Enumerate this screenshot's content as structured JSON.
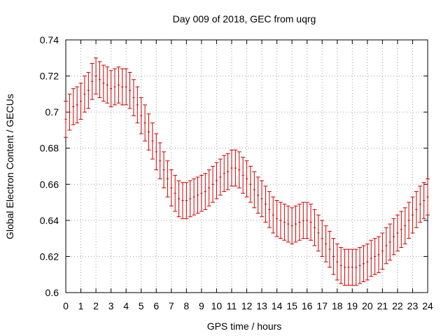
{
  "chart_data": {
    "type": "line",
    "title": "Day 009 of 2018, GEC from uqrg",
    "xlabel": "GPS time / hours",
    "ylabel": "Global Electron Content / GECUs",
    "xlim": [
      0,
      24
    ],
    "ylim": [
      0.6,
      0.74
    ],
    "x_ticks": [
      "0",
      "1",
      "2",
      "3",
      "4",
      "5",
      "6",
      "7",
      "8",
      "9",
      "10",
      "11",
      "12",
      "13",
      "14",
      "15",
      "16",
      "17",
      "18",
      "19",
      "20",
      "21",
      "22",
      "23",
      "24"
    ],
    "y_ticks": [
      "0.6",
      "0.62",
      "0.64",
      "0.66",
      "0.68",
      "0.7",
      "0.72",
      "0.74"
    ],
    "grid": true,
    "error_bars": true,
    "series_color": "#cc0000",
    "x": [
      0,
      0.25,
      0.5,
      0.75,
      1,
      1.25,
      1.5,
      1.75,
      2,
      2.25,
      2.5,
      2.75,
      3,
      3.25,
      3.5,
      3.75,
      4,
      4.25,
      4.5,
      4.75,
      5,
      5.25,
      5.5,
      5.75,
      6,
      6.25,
      6.5,
      6.75,
      7,
      7.25,
      7.5,
      7.75,
      8,
      8.25,
      8.5,
      8.75,
      9,
      9.25,
      9.5,
      9.75,
      10,
      10.25,
      10.5,
      10.75,
      11,
      11.25,
      11.5,
      11.75,
      12,
      12.25,
      12.5,
      12.75,
      13,
      13.25,
      13.5,
      13.75,
      14,
      14.25,
      14.5,
      14.75,
      15,
      15.25,
      15.5,
      15.75,
      16,
      16.25,
      16.5,
      16.75,
      17,
      17.25,
      17.5,
      17.75,
      18,
      18.25,
      18.5,
      18.75,
      19,
      19.25,
      19.5,
      19.75,
      20,
      20.25,
      20.5,
      20.75,
      21,
      21.25,
      21.5,
      21.75,
      22,
      22.25,
      22.5,
      22.75,
      23,
      23.25,
      23.5,
      23.75,
      24
    ],
    "values": [
      0.696,
      0.7,
      0.703,
      0.704,
      0.706,
      0.71,
      0.712,
      0.717,
      0.72,
      0.718,
      0.716,
      0.715,
      0.713,
      0.714,
      0.715,
      0.714,
      0.714,
      0.712,
      0.708,
      0.704,
      0.698,
      0.694,
      0.689,
      0.684,
      0.678,
      0.673,
      0.668,
      0.663,
      0.658,
      0.655,
      0.652,
      0.651,
      0.651,
      0.652,
      0.653,
      0.654,
      0.655,
      0.656,
      0.658,
      0.66,
      0.662,
      0.664,
      0.666,
      0.667,
      0.669,
      0.669,
      0.668,
      0.665,
      0.663,
      0.66,
      0.657,
      0.654,
      0.652,
      0.649,
      0.646,
      0.643,
      0.641,
      0.64,
      0.639,
      0.638,
      0.637,
      0.638,
      0.639,
      0.64,
      0.64,
      0.639,
      0.636,
      0.633,
      0.63,
      0.627,
      0.624,
      0.62,
      0.617,
      0.615,
      0.614,
      0.614,
      0.614,
      0.614,
      0.615,
      0.616,
      0.617,
      0.619,
      0.62,
      0.621,
      0.623,
      0.626,
      0.628,
      0.631,
      0.633,
      0.635,
      0.637,
      0.64,
      0.643,
      0.646,
      0.649,
      0.651,
      0.653
    ],
    "error": [
      0.01,
      0.01,
      0.01,
      0.01,
      0.01,
      0.01,
      0.01,
      0.01,
      0.01,
      0.01,
      0.01,
      0.01,
      0.01,
      0.01,
      0.01,
      0.01,
      0.01,
      0.01,
      0.01,
      0.01,
      0.01,
      0.01,
      0.01,
      0.01,
      0.01,
      0.01,
      0.01,
      0.01,
      0.01,
      0.01,
      0.01,
      0.01,
      0.01,
      0.01,
      0.01,
      0.01,
      0.01,
      0.01,
      0.01,
      0.01,
      0.01,
      0.01,
      0.01,
      0.01,
      0.01,
      0.01,
      0.01,
      0.01,
      0.01,
      0.01,
      0.01,
      0.01,
      0.01,
      0.01,
      0.01,
      0.01,
      0.01,
      0.01,
      0.01,
      0.01,
      0.01,
      0.01,
      0.01,
      0.01,
      0.01,
      0.01,
      0.01,
      0.01,
      0.01,
      0.01,
      0.01,
      0.01,
      0.01,
      0.01,
      0.01,
      0.01,
      0.01,
      0.01,
      0.01,
      0.01,
      0.01,
      0.01,
      0.01,
      0.01,
      0.01,
      0.01,
      0.01,
      0.01,
      0.01,
      0.01,
      0.01,
      0.01,
      0.01,
      0.01,
      0.01,
      0.01,
      0.01
    ]
  }
}
